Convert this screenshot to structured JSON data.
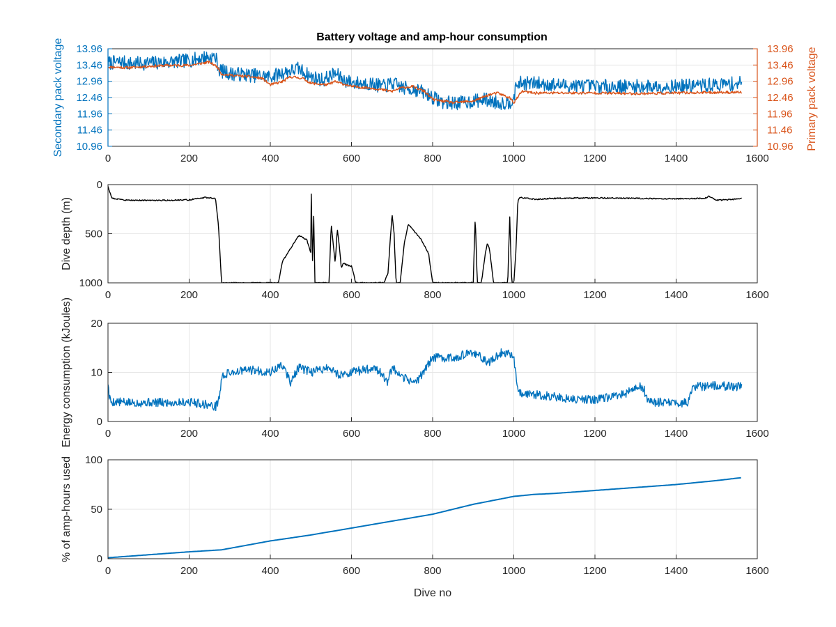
{
  "figure": {
    "title": "Battery voltage and amp-hour consumption",
    "colors": {
      "blue": "#0072BD",
      "orange": "#D95319",
      "black": "#000000",
      "grid": "#e6e6e6",
      "axis": "#262626"
    }
  },
  "chart_data": [
    {
      "type": "line",
      "title": "Battery voltage and amp-hour consumption",
      "xlabel": "",
      "ylabel": "Secondary pack voltage",
      "ylabel_right": "Primary pack voltage",
      "xlim": [
        0,
        1600
      ],
      "ylim": [
        10.96,
        13.96
      ],
      "xticks": [
        "0",
        "200",
        "400",
        "600",
        "800",
        "1000",
        "1200",
        "1400",
        "1600"
      ],
      "yticks": [
        "10.96",
        "11.46",
        "11.96",
        "12.46",
        "12.96",
        "13.46",
        "13.96"
      ],
      "yticks_right": [
        "10.96",
        "11.46",
        "11.96",
        "12.46",
        "12.96",
        "13.46",
        "13.96"
      ],
      "grid": true,
      "series": [
        {
          "axis": "left",
          "color": "#0072BD",
          "noise": 0.22,
          "seed": 7,
          "x": [
            0,
            30,
            60,
            100,
            150,
            200,
            240,
            265,
            275,
            300,
            350,
            400,
            440,
            470,
            500,
            530,
            560,
            580,
            610,
            640,
            680,
            700,
            730,
            760,
            790,
            810,
            830,
            850,
            870,
            900,
            930,
            960,
            990,
            1000,
            1010,
            1050,
            1100,
            1200,
            1300,
            1400,
            1500,
            1562
          ],
          "y": [
            13.52,
            13.55,
            13.5,
            13.52,
            13.55,
            13.6,
            13.7,
            13.7,
            13.3,
            13.2,
            13.15,
            13.1,
            13.25,
            13.35,
            13.1,
            13.0,
            13.2,
            13.0,
            12.9,
            12.9,
            12.8,
            12.9,
            12.75,
            12.7,
            12.55,
            12.4,
            12.3,
            12.3,
            12.3,
            12.35,
            12.4,
            12.3,
            12.3,
            12.5,
            12.9,
            12.9,
            12.85,
            12.8,
            12.8,
            12.8,
            12.85,
            12.9
          ]
        },
        {
          "axis": "right",
          "color": "#D95319",
          "noise": 0.04,
          "seed": 11,
          "x": [
            0,
            50,
            100,
            150,
            200,
            250,
            270,
            280,
            300,
            350,
            380,
            400,
            430,
            450,
            480,
            500,
            540,
            560,
            600,
            650,
            700,
            720,
            750,
            780,
            800,
            850,
            900,
            940,
            960,
            990,
            1000,
            1020,
            1050,
            1100,
            1200,
            1300,
            1400,
            1500,
            1562
          ],
          "y": [
            13.4,
            13.38,
            13.42,
            13.45,
            13.45,
            13.55,
            13.4,
            13.18,
            13.15,
            13.1,
            13.05,
            12.85,
            12.95,
            13.1,
            13.05,
            12.9,
            12.85,
            12.95,
            12.8,
            12.75,
            12.65,
            12.75,
            12.8,
            12.65,
            12.4,
            12.3,
            12.35,
            12.55,
            12.6,
            12.45,
            12.3,
            12.65,
            12.6,
            12.6,
            12.6,
            12.58,
            12.6,
            12.62,
            12.62
          ]
        }
      ]
    },
    {
      "type": "line",
      "xlabel": "",
      "ylabel": "Dive depth (m)",
      "xlim": [
        0,
        1600
      ],
      "ylim": [
        0,
        1000
      ],
      "y_reversed": true,
      "xticks": [
        "0",
        "200",
        "400",
        "600",
        "800",
        "1000",
        "1200",
        "1400",
        "1600"
      ],
      "yticks": [
        "0",
        "500",
        "1000"
      ],
      "grid": true,
      "series": [
        {
          "color": "#000000",
          "noise": 6,
          "seed": 3,
          "x": [
            0,
            5,
            10,
            30,
            50,
            100,
            150,
            200,
            240,
            265,
            272,
            280,
            290,
            300,
            350,
            400,
            420,
            430,
            450,
            470,
            490,
            500,
            501,
            505,
            506,
            510,
            530,
            545,
            550,
            555,
            560,
            565,
            570,
            575,
            580,
            590,
            600,
            605,
            610,
            650,
            680,
            690,
            700,
            705,
            710,
            720,
            730,
            740,
            750,
            760,
            770,
            790,
            800,
            810,
            820,
            850,
            880,
            900,
            905,
            910,
            920,
            930,
            935,
            940,
            950,
            960,
            970,
            980,
            985,
            990,
            995,
            1000,
            1005,
            1010,
            1015,
            1050,
            1100,
            1200,
            1300,
            1400,
            1470,
            1480,
            1500,
            1540,
            1562
          ],
          "y": [
            20,
            80,
            140,
            150,
            160,
            160,
            160,
            155,
            130,
            140,
            400,
            1000,
            1000,
            1000,
            1000,
            1000,
            1000,
            780,
            650,
            520,
            560,
            700,
            100,
            1000,
            100,
            1000,
            1000,
            1000,
            400,
            600,
            800,
            450,
            620,
            850,
            800,
            820,
            830,
            900,
            1000,
            1000,
            1000,
            900,
            300,
            500,
            1000,
            1000,
            600,
            400,
            450,
            500,
            550,
            700,
            1000,
            1000,
            1000,
            1000,
            1000,
            1000,
            320,
            1000,
            1000,
            700,
            600,
            650,
            1000,
            1000,
            1000,
            1000,
            1000,
            330,
            1000,
            1000,
            700,
            160,
            130,
            150,
            140,
            135,
            140,
            145,
            140,
            120,
            160,
            150,
            140
          ]
        }
      ]
    },
    {
      "type": "line",
      "xlabel": "",
      "ylabel": "Energy consumption (kJoules)",
      "xlim": [
        0,
        1600
      ],
      "ylim": [
        0,
        20
      ],
      "xticks": [
        "0",
        "200",
        "400",
        "600",
        "800",
        "1000",
        "1200",
        "1400",
        "1600"
      ],
      "yticks": [
        "0",
        "10",
        "20"
      ],
      "grid": true,
      "series": [
        {
          "color": "#0072BD",
          "noise": 0.9,
          "seed": 5,
          "x": [
            0,
            3,
            8,
            20,
            50,
            100,
            150,
            200,
            240,
            265,
            275,
            280,
            300,
            350,
            400,
            430,
            450,
            470,
            500,
            540,
            570,
            600,
            630,
            660,
            690,
            700,
            720,
            760,
            800,
            850,
            900,
            940,
            970,
            990,
            1000,
            1005,
            1010,
            1050,
            1100,
            1150,
            1200,
            1250,
            1300,
            1310,
            1320,
            1330,
            1400,
            1430,
            1440,
            1500,
            1562
          ],
          "y": [
            8,
            5,
            4,
            4,
            3.8,
            3.9,
            3.8,
            4,
            3.5,
            3,
            5,
            9,
            10,
            10.5,
            10,
            11.5,
            8,
            11,
            10,
            11,
            9.5,
            10,
            10.5,
            11,
            8,
            11,
            9,
            8,
            13,
            13,
            14,
            12,
            14,
            14,
            13,
            10,
            6,
            5.5,
            5,
            4.5,
            4.5,
            5,
            6.5,
            7,
            6.8,
            4,
            3.8,
            3.8,
            7,
            7.3,
            7
          ]
        }
      ]
    },
    {
      "type": "line",
      "xlabel": "Dive no",
      "ylabel": "% of amp-hours used",
      "xlim": [
        0,
        1600
      ],
      "ylim": [
        0,
        100
      ],
      "xticks": [
        "0",
        "200",
        "400",
        "600",
        "800",
        "1000",
        "1200",
        "1400",
        "1600"
      ],
      "yticks": [
        "0",
        "50",
        "100"
      ],
      "grid": true,
      "series": [
        {
          "color": "#0072BD",
          "noise": 0,
          "seed": 1,
          "x": [
            0,
            100,
            200,
            280,
            400,
            500,
            600,
            700,
            800,
            900,
            1000,
            1050,
            1100,
            1200,
            1300,
            1400,
            1500,
            1562
          ],
          "y": [
            1,
            4,
            7,
            9,
            18,
            24,
            31,
            38,
            45,
            55,
            63,
            65,
            66,
            69,
            72,
            75,
            79,
            82
          ]
        }
      ]
    }
  ]
}
